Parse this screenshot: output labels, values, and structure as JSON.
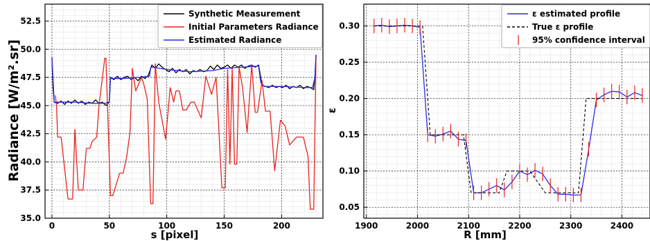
{
  "chart_data": [
    {
      "type": "line",
      "xlabel": "s [pixel]",
      "ylabel": "Radiance [W/m².sr]",
      "xlim": [
        -6,
        236
      ],
      "ylim": [
        35.0,
        54.0
      ],
      "xticks": [
        0,
        50,
        100,
        150,
        200
      ],
      "yticks": [
        35.0,
        37.5,
        40.0,
        42.5,
        45.0,
        47.5,
        50.0,
        52.5
      ],
      "ytick_labels": [
        "35.0",
        "37.5",
        "40.0",
        "42.5",
        "45.0",
        "47.5",
        "50.0",
        "52.5"
      ],
      "grid": true,
      "legend_position": "top-right",
      "series": [
        {
          "name": "Synthetic Measurement",
          "color": "#000000",
          "x": [
            0,
            1,
            2,
            5,
            8,
            11,
            14,
            17,
            20,
            23,
            26,
            29,
            32,
            35,
            38,
            41,
            44,
            47,
            50,
            51,
            54,
            57,
            60,
            63,
            66,
            69,
            72,
            75,
            78,
            81,
            84,
            87,
            90,
            93,
            96,
            99,
            102,
            105,
            108,
            111,
            114,
            117,
            120,
            123,
            126,
            129,
            132,
            135,
            138,
            141,
            144,
            147,
            150,
            153,
            156,
            159,
            162,
            165,
            168,
            171,
            174,
            177,
            180,
            183,
            186,
            189,
            192,
            195,
            198,
            201,
            204,
            207,
            210,
            213,
            216,
            219,
            222,
            225,
            228,
            229,
            230
          ],
          "y": [
            49.3,
            46.5,
            45.3,
            45.2,
            45.4,
            45.1,
            45.4,
            45.2,
            45.5,
            45.2,
            45.4,
            45.1,
            45.3,
            45.2,
            45.5,
            45.2,
            45.3,
            45.0,
            45.3,
            47.5,
            47.3,
            47.6,
            47.3,
            47.5,
            47.6,
            47.3,
            47.5,
            47.2,
            47.6,
            47.4,
            47.7,
            48.6,
            48.3,
            48.7,
            48.4,
            48.2,
            48.0,
            48.3,
            47.9,
            48.2,
            48.0,
            48.2,
            47.8,
            48.1,
            48.0,
            48.2,
            48.0,
            48.1,
            48.5,
            48.2,
            48.6,
            48.3,
            48.4,
            48.6,
            48.3,
            48.6,
            48.4,
            48.6,
            48.3,
            48.5,
            48.6,
            48.4,
            48.6,
            46.8,
            46.7,
            46.6,
            46.8,
            46.6,
            46.7,
            46.6,
            46.8,
            46.5,
            46.7,
            46.6,
            46.8,
            46.5,
            46.7,
            46.6,
            46.4,
            47.5,
            49.5
          ]
        },
        {
          "name": "Initial Parameters Radiance",
          "color": "#e8231e",
          "x": [
            3,
            4,
            5,
            8,
            14,
            18,
            20,
            23,
            27,
            30,
            33,
            35,
            39,
            41,
            46,
            47,
            51,
            53,
            59,
            62,
            65,
            68,
            70,
            73,
            78,
            80,
            83,
            86,
            88,
            90,
            93,
            99,
            103,
            106,
            108,
            111,
            114,
            117,
            121,
            124,
            130,
            134,
            139,
            143,
            148,
            151,
            153,
            155,
            157,
            159,
            161,
            163,
            166,
            170,
            174,
            177,
            179,
            183,
            186,
            190,
            194,
            199,
            203,
            207,
            213,
            219,
            223,
            225,
            228,
            230
          ],
          "y": [
            45.9,
            45.0,
            42.2,
            42.2,
            36.7,
            36.7,
            42.9,
            37.5,
            37.5,
            41.2,
            41.2,
            41.8,
            42.2,
            45.0,
            49.2,
            49.2,
            37.0,
            37.0,
            39.0,
            39.0,
            40.4,
            42.6,
            48.3,
            46.3,
            47.5,
            46.9,
            45.6,
            36.3,
            36.3,
            48.7,
            45.3,
            42.0,
            46.6,
            45.3,
            46.3,
            46.3,
            44.6,
            44.6,
            45.3,
            45.3,
            43.9,
            47.6,
            46.0,
            47.5,
            37.7,
            37.7,
            48.2,
            39.8,
            48.3,
            39.8,
            39.8,
            48.4,
            46.6,
            42.6,
            48.6,
            44.4,
            44.4,
            47.2,
            44.5,
            44.5,
            39.2,
            43.7,
            43.2,
            41.5,
            42.2,
            42.2,
            40.5,
            35.8,
            35.8,
            49.5
          ]
        },
        {
          "name": "Estimated Radiance",
          "color": "#2a2ae6",
          "x": [
            0,
            2,
            8,
            20,
            35,
            47,
            48,
            50,
            51,
            62,
            75,
            85,
            86,
            88,
            100,
            120,
            140,
            150,
            165,
            180,
            182,
            185,
            200,
            220,
            227,
            229,
            230
          ],
          "y": [
            49.3,
            45.3,
            45.3,
            45.3,
            45.2,
            45.2,
            45.3,
            45.3,
            47.4,
            47.4,
            47.5,
            47.6,
            48.4,
            48.4,
            48.2,
            48.0,
            48.1,
            48.3,
            48.4,
            48.5,
            47.0,
            46.7,
            46.7,
            46.6,
            46.6,
            47.5,
            49.5
          ]
        }
      ]
    },
    {
      "type": "line",
      "xlabel": "R [mm]",
      "ylabel": "ε",
      "xlim": [
        1895,
        2455
      ],
      "ylim": [
        0.035,
        0.33
      ],
      "xticks": [
        1900,
        2000,
        2100,
        2200,
        2300,
        2400
      ],
      "yticks": [
        0.05,
        0.1,
        0.15,
        0.2,
        0.25,
        0.3
      ],
      "ytick_labels": [
        "0.05",
        "0.10",
        "0.15",
        "0.20",
        "0.25",
        "0.30"
      ],
      "grid": true,
      "legend_position": "top-right",
      "series": [
        {
          "name": "ε estimated profile",
          "color": "#2a2ae6",
          "x": [
            1915,
            1930,
            1945,
            1960,
            1975,
            1990,
            2005,
            2020,
            2035,
            2050,
            2065,
            2080,
            2095,
            2110,
            2125,
            2140,
            2155,
            2170,
            2185,
            2200,
            2215,
            2230,
            2245,
            2260,
            2275,
            2290,
            2305,
            2320,
            2335,
            2350,
            2365,
            2380,
            2395,
            2410,
            2425,
            2440
          ],
          "y": [
            0.3,
            0.301,
            0.299,
            0.3,
            0.301,
            0.3,
            0.298,
            0.15,
            0.148,
            0.151,
            0.155,
            0.144,
            0.142,
            0.07,
            0.07,
            0.075,
            0.08,
            0.074,
            0.085,
            0.1,
            0.095,
            0.101,
            0.096,
            0.08,
            0.068,
            0.068,
            0.067,
            0.067,
            0.13,
            0.198,
            0.205,
            0.21,
            0.209,
            0.202,
            0.208,
            0.204
          ]
        },
        {
          "name": "True ε profile",
          "color": "#000000",
          "dashed": true,
          "x": [
            1915,
            2010,
            2025,
            2090,
            2105,
            2160,
            2175,
            2205,
            2220,
            2250,
            2265,
            2315,
            2330,
            2440
          ],
          "y": [
            0.3,
            0.3,
            0.15,
            0.15,
            0.07,
            0.07,
            0.1,
            0.1,
            0.1,
            0.07,
            0.07,
            0.07,
            0.2,
            0.2
          ]
        },
        {
          "name": "95% confidence interval",
          "color": "#e8231e",
          "errorbar": true,
          "x": [
            1915,
            1930,
            1945,
            1960,
            1975,
            1990,
            2005,
            2020,
            2035,
            2050,
            2065,
            2080,
            2095,
            2110,
            2125,
            2140,
            2155,
            2170,
            2185,
            2200,
            2215,
            2230,
            2245,
            2260,
            2275,
            2290,
            2305,
            2320,
            2335,
            2350,
            2365,
            2380,
            2395,
            2410,
            2425,
            2440
          ],
          "y": [
            0.3,
            0.301,
            0.299,
            0.3,
            0.301,
            0.3,
            0.298,
            0.15,
            0.148,
            0.151,
            0.155,
            0.144,
            0.142,
            0.07,
            0.07,
            0.075,
            0.08,
            0.074,
            0.085,
            0.1,
            0.095,
            0.101,
            0.096,
            0.08,
            0.068,
            0.068,
            0.067,
            0.067,
            0.13,
            0.198,
            0.205,
            0.21,
            0.209,
            0.202,
            0.208,
            0.204
          ],
          "err": [
            0.01,
            0.01,
            0.01,
            0.01,
            0.01,
            0.01,
            0.01,
            0.01,
            0.01,
            0.01,
            0.01,
            0.01,
            0.01,
            0.01,
            0.01,
            0.01,
            0.01,
            0.01,
            0.01,
            0.01,
            0.01,
            0.01,
            0.01,
            0.01,
            0.01,
            0.01,
            0.01,
            0.01,
            0.01,
            0.01,
            0.01,
            0.01,
            0.01,
            0.01,
            0.01,
            0.01
          ]
        }
      ]
    }
  ]
}
